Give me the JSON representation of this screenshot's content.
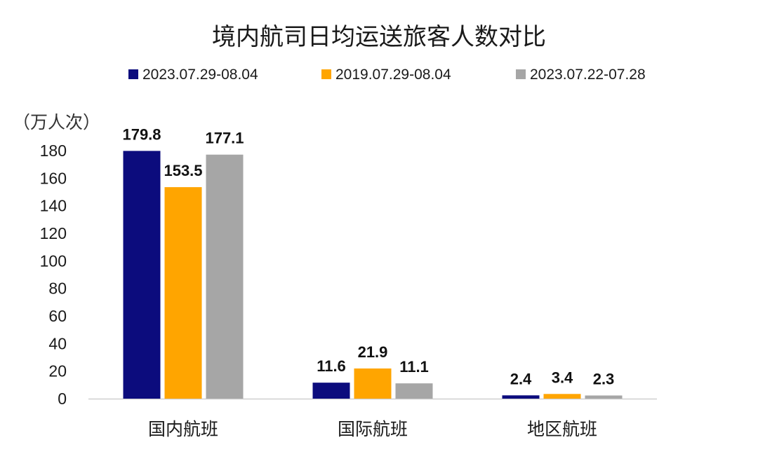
{
  "chart_data": {
    "type": "bar",
    "title": "境内航司日均运送旅客人数对比",
    "ylabel": "（万人次）",
    "xlabel": "",
    "categories": [
      "国内航班",
      "国际航班",
      "地区航班"
    ],
    "series": [
      {
        "name": "2023.07.29-08.04",
        "color": "#0c0c7d",
        "values": [
          179.8,
          11.6,
          2.4
        ]
      },
      {
        "name": "2019.07.29-08.04",
        "color": "#ffa500",
        "values": [
          153.5,
          21.9,
          3.4
        ]
      },
      {
        "name": "2023.07.22-07.28",
        "color": "#a6a6a6",
        "values": [
          177.1,
          11.1,
          2.3
        ]
      }
    ],
    "ylim": [
      0,
      180
    ],
    "yticks": [
      0,
      20,
      40,
      60,
      80,
      100,
      120,
      140,
      160,
      180
    ],
    "grid": false,
    "legend_position": "top",
    "data_labels": true
  }
}
